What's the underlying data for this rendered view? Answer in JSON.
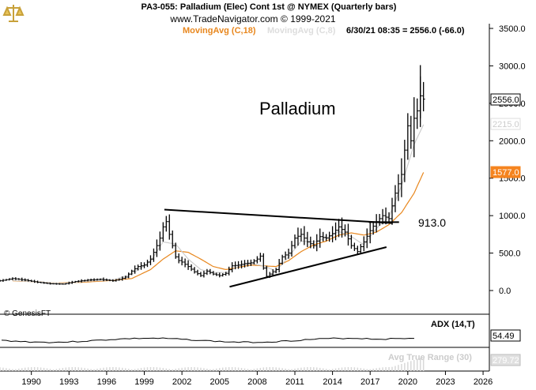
{
  "header": {
    "title": "PA3-055:  Palladium (Elec) Cont 1st @ NYMEX  (Quarterly bars)",
    "copyright": "www.TradeNavigator.com © 1999-2021",
    "ma_primary": "MovingAvg (C,18)",
    "ma_secondary": "MovingAvg (C,8)",
    "last_quote": "6/30/21 08:35 = 2556.0 (-66.0)"
  },
  "annotations": {
    "label": "Palladium",
    "level_label": "913.0",
    "source": "© GenesisFT"
  },
  "badges": {
    "price": "2556.0",
    "ma8": "2215.0",
    "ma18": "1577.0",
    "adx": "54.49",
    "atr": "279.72"
  },
  "colors": {
    "bars": "#000000",
    "ma18": "#e8871e",
    "ma8": "#cccccc",
    "badge_price": "#ffffff",
    "badge_ma8": "#ffffff",
    "badge_ma18": "#f5841f",
    "adx_badge": "#ffffff",
    "atr_badge": "#e0e0e0"
  },
  "chart_data": {
    "type": "ohlc",
    "title": "PA3-055:  Palladium (Elec) Cont 1st @ NYMEX  (Quarterly bars)",
    "ylim": [
      -50,
      3600
    ],
    "y_ticks": [
      "3500.0",
      "3000.0",
      "2500.0",
      "2000.0",
      "1500.0",
      "1000.0",
      "500.0",
      "0.0"
    ],
    "y_tick_values": [
      3500,
      3000,
      2500,
      2000,
      1500,
      1000,
      500,
      0
    ],
    "xlim": [
      1987.5,
      2026.5
    ],
    "x_ticks": [
      "1990",
      "1993",
      "1996",
      "1999",
      "2002",
      "2005",
      "2008",
      "2011",
      "2014",
      "2017",
      "2020",
      "2023",
      "2026"
    ],
    "x_tick_values": [
      1990,
      1993,
      1996,
      1999,
      2002,
      2005,
      2008,
      2011,
      2014,
      2017,
      2020,
      2023,
      2026
    ],
    "anchors": [
      [
        1987.5,
        130
      ],
      [
        1988.5,
        160
      ],
      [
        1989.5,
        140
      ],
      [
        1990.5,
        110
      ],
      [
        1991.5,
        90
      ],
      [
        1992.5,
        85
      ],
      [
        1993.5,
        120
      ],
      [
        1994.5,
        140
      ],
      [
        1995.5,
        150
      ],
      [
        1996.5,
        130
      ],
      [
        1997.0,
        150
      ],
      [
        1997.5,
        180
      ],
      [
        1998.0,
        260
      ],
      [
        1998.5,
        320
      ],
      [
        1999.0,
        340
      ],
      [
        1999.5,
        420
      ],
      [
        2000.0,
        600
      ],
      [
        2000.25,
        700
      ],
      [
        2000.5,
        850
      ],
      [
        2000.75,
        920
      ],
      [
        2001.0,
        750
      ],
      [
        2001.25,
        600
      ],
      [
        2001.5,
        450
      ],
      [
        2001.75,
        400
      ],
      [
        2002.0,
        380
      ],
      [
        2002.5,
        320
      ],
      [
        2003.0,
        250
      ],
      [
        2003.5,
        200
      ],
      [
        2004.0,
        260
      ],
      [
        2004.5,
        220
      ],
      [
        2005.0,
        200
      ],
      [
        2005.5,
        230
      ],
      [
        2006.0,
        330
      ],
      [
        2006.5,
        340
      ],
      [
        2007.0,
        360
      ],
      [
        2007.5,
        370
      ],
      [
        2008.0,
        420
      ],
      [
        2008.25,
        460
      ],
      [
        2008.5,
        300
      ],
      [
        2008.75,
        190
      ],
      [
        2009.0,
        220
      ],
      [
        2009.5,
        280
      ],
      [
        2010.0,
        450
      ],
      [
        2010.5,
        500
      ],
      [
        2011.0,
        700
      ],
      [
        2011.5,
        750
      ],
      [
        2012.0,
        650
      ],
      [
        2012.5,
        600
      ],
      [
        2013.0,
        720
      ],
      [
        2013.5,
        700
      ],
      [
        2014.0,
        760
      ],
      [
        2014.5,
        850
      ],
      [
        2015.0,
        780
      ],
      [
        2015.5,
        600
      ],
      [
        2016.0,
        520
      ],
      [
        2016.5,
        650
      ],
      [
        2017.0,
        800
      ],
      [
        2017.5,
        920
      ],
      [
        2018.0,
        1000
      ],
      [
        2018.5,
        960
      ],
      [
        2019.0,
        1300
      ],
      [
        2019.5,
        1550
      ],
      [
        2020.0,
        2200
      ],
      [
        2020.25,
        2000
      ],
      [
        2020.5,
        2300
      ],
      [
        2020.75,
        2400
      ],
      [
        2021.0,
        2600
      ],
      [
        2021.25,
        2556
      ]
    ],
    "ma18_anchors": [
      [
        1988.5,
        130
      ],
      [
        1990.0,
        120
      ],
      [
        1992.0,
        100
      ],
      [
        1994.0,
        110
      ],
      [
        1996.0,
        130
      ],
      [
        1998.0,
        160
      ],
      [
        1999.5,
        280
      ],
      [
        2000.5,
        420
      ],
      [
        2001.5,
        530
      ],
      [
        2002.5,
        510
      ],
      [
        2003.5,
        420
      ],
      [
        2004.5,
        320
      ],
      [
        2005.5,
        280
      ],
      [
        2006.5,
        310
      ],
      [
        2007.5,
        340
      ],
      [
        2008.5,
        330
      ],
      [
        2009.5,
        320
      ],
      [
        2010.5,
        400
      ],
      [
        2011.5,
        520
      ],
      [
        2012.5,
        610
      ],
      [
        2013.5,
        660
      ],
      [
        2014.5,
        740
      ],
      [
        2015.5,
        770
      ],
      [
        2016.5,
        740
      ],
      [
        2017.5,
        780
      ],
      [
        2018.5,
        880
      ],
      [
        2019.5,
        1040
      ],
      [
        2020.5,
        1300
      ],
      [
        2021.25,
        1577
      ]
    ],
    "ma8_anchors": [
      [
        1988.5,
        135
      ],
      [
        1990.5,
        115
      ],
      [
        1992.5,
        95
      ],
      [
        1994.5,
        125
      ],
      [
        1996.5,
        140
      ],
      [
        1998.0,
        220
      ],
      [
        1999.5,
        390
      ],
      [
        2000.5,
        650
      ],
      [
        2001.5,
        620
      ],
      [
        2002.5,
        420
      ],
      [
        2003.5,
        280
      ],
      [
        2004.5,
        240
      ],
      [
        2005.5,
        240
      ],
      [
        2006.5,
        320
      ],
      [
        2007.5,
        360
      ],
      [
        2008.5,
        330
      ],
      [
        2009.5,
        260
      ],
      [
        2010.5,
        450
      ],
      [
        2011.5,
        660
      ],
      [
        2012.5,
        650
      ],
      [
        2013.5,
        700
      ],
      [
        2014.5,
        790
      ],
      [
        2015.5,
        720
      ],
      [
        2016.5,
        610
      ],
      [
        2017.5,
        830
      ],
      [
        2018.5,
        980
      ],
      [
        2019.5,
        1400
      ],
      [
        2020.5,
        1950
      ],
      [
        2021.25,
        2215
      ]
    ],
    "trendlines": [
      {
        "name": "resistance",
        "points": [
          [
            2000.6,
            1080
          ],
          [
            2018.8,
            900
          ]
        ]
      },
      {
        "name": "support",
        "points": [
          [
            2005.8,
            50
          ],
          [
            2018.3,
            580
          ]
        ]
      },
      {
        "name": "horizontal-913",
        "points": [
          [
            2016.9,
            913
          ],
          [
            2019.3,
            913
          ]
        ]
      }
    ],
    "adx": {
      "name": "ADX (14,T)",
      "value": "54.49"
    },
    "atr": {
      "name": "Avg True Range (30)",
      "value": "279.72"
    }
  }
}
